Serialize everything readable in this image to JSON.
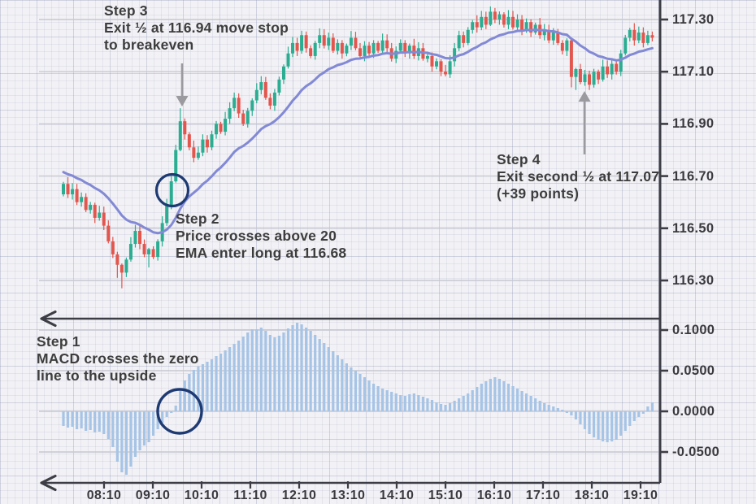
{
  "chart_data": {
    "type": "candlestick_with_ema_and_macd_histogram",
    "description": "Intraday price with 20 EMA (top panel) and MACD histogram (bottom panel)",
    "bars": 132,
    "open_first": 116.63,
    "closes": [
      116.67,
      116.63,
      116.65,
      116.6,
      116.62,
      116.57,
      116.59,
      116.54,
      116.56,
      116.51,
      116.45,
      116.4,
      116.36,
      116.33,
      116.38,
      116.44,
      116.49,
      116.44,
      116.4,
      116.42,
      116.39,
      116.45,
      116.52,
      116.59,
      116.68,
      116.8,
      116.91,
      116.86,
      116.81,
      116.77,
      116.79,
      116.84,
      116.81,
      116.86,
      116.9,
      116.87,
      116.92,
      116.96,
      117.0,
      116.94,
      116.9,
      116.95,
      116.99,
      117.03,
      117.06,
      117.0,
      116.97,
      117.02,
      117.07,
      117.12,
      117.17,
      117.21,
      117.18,
      117.24,
      117.19,
      117.16,
      117.21,
      117.24,
      117.2,
      117.23,
      117.18,
      117.21,
      117.17,
      117.2,
      117.23,
      117.19,
      117.16,
      117.2,
      117.17,
      117.21,
      117.18,
      117.22,
      117.19,
      117.15,
      117.18,
      117.21,
      117.17,
      117.2,
      117.16,
      117.19,
      117.15,
      117.16,
      117.12,
      117.14,
      117.1,
      117.09,
      117.14,
      117.19,
      117.24,
      117.21,
      117.26,
      117.29,
      117.27,
      117.31,
      117.28,
      117.33,
      117.3,
      117.32,
      117.28,
      117.31,
      117.27,
      117.3,
      117.26,
      117.29,
      117.25,
      117.28,
      117.24,
      117.26,
      117.22,
      117.25,
      117.21,
      117.18,
      117.22,
      117.08,
      117.11,
      117.06,
      117.09,
      117.05,
      117.1,
      117.07,
      117.12,
      117.09,
      117.13,
      117.1,
      117.17,
      117.23,
      117.26,
      117.22,
      117.25,
      117.21,
      117.24,
      117.23
    ],
    "ema_period": 20,
    "ema_seed": 116.72,
    "wick_default": 0.008,
    "wick_overrides": {
      "12": [
        0.01,
        0.05
      ],
      "13": [
        0.005,
        0.06
      ],
      "19": [
        0.005,
        0.05
      ],
      "25": [
        0.02,
        0.005
      ],
      "26": [
        0.05,
        0.005
      ],
      "95": [
        0.02,
        0.005
      ],
      "113": [
        0.005,
        0.04
      ],
      "114": [
        0.005,
        0.05
      ]
    },
    "macd_values": [
      -0.018,
      -0.02,
      -0.019,
      -0.022,
      -0.021,
      -0.024,
      -0.023,
      -0.026,
      -0.025,
      -0.028,
      -0.034,
      -0.044,
      -0.062,
      -0.075,
      -0.078,
      -0.068,
      -0.056,
      -0.048,
      -0.042,
      -0.038,
      -0.03,
      -0.022,
      -0.014,
      -0.007,
      -0.002,
      0.007,
      0.025,
      0.038,
      0.046,
      0.051,
      0.055,
      0.058,
      0.061,
      0.064,
      0.068,
      0.071,
      0.075,
      0.079,
      0.083,
      0.087,
      0.092,
      0.097,
      0.101,
      0.101,
      0.103,
      0.099,
      0.094,
      0.091,
      0.093,
      0.097,
      0.102,
      0.106,
      0.109,
      0.107,
      0.103,
      0.099,
      0.094,
      0.089,
      0.084,
      0.079,
      0.074,
      0.069,
      0.064,
      0.059,
      0.054,
      0.05,
      0.046,
      0.042,
      0.038,
      0.034,
      0.031,
      0.028,
      0.026,
      0.024,
      0.022,
      0.02,
      0.019,
      0.021,
      0.022,
      0.02,
      0.018,
      0.016,
      0.014,
      0.011,
      0.009,
      0.008,
      0.01,
      0.013,
      0.016,
      0.019,
      0.022,
      0.026,
      0.03,
      0.034,
      0.037,
      0.04,
      0.042,
      0.04,
      0.037,
      0.034,
      0.031,
      0.028,
      0.025,
      0.022,
      0.019,
      0.016,
      0.013,
      0.01,
      0.008,
      0.006,
      0.004,
      0.002,
      -0.002,
      -0.005,
      -0.01,
      -0.016,
      -0.022,
      -0.028,
      -0.032,
      -0.035,
      -0.037,
      -0.038,
      -0.037,
      -0.035,
      -0.03,
      -0.024,
      -0.018,
      -0.012,
      -0.007,
      -0.003,
      0.006,
      0.011
    ],
    "price_axis": {
      "tick_values": [
        117.3,
        117.1,
        116.9,
        116.7,
        116.5,
        116.3
      ],
      "tick_labels": [
        "117.30",
        "117.10",
        "116.90",
        "116.70",
        "116.50",
        "116.30"
      ],
      "range": [
        116.2,
        117.37
      ]
    },
    "macd_axis": {
      "tick_values": [
        0.1,
        0.05,
        0.0,
        -0.05
      ],
      "tick_labels": [
        "0.1000",
        "0.0500",
        "0.0000",
        "-0.0500"
      ],
      "range": [
        -0.09,
        0.115
      ]
    },
    "time_axis": {
      "tick_labels": [
        "08:10",
        "09:10",
        "10:10",
        "11:10",
        "12:10",
        "13:10",
        "14:10",
        "15:10",
        "16:10",
        "17:10",
        "18:10",
        "19:10"
      ]
    },
    "legend": "none",
    "grid": "graph-paper background with horizontal level gridlines"
  },
  "annotations": {
    "step1": {
      "title": "Step 1",
      "line1": "MACD crosses the zero",
      "line2": "line to the upside"
    },
    "step2": {
      "title": "Step 2",
      "line1": "Price crosses above 20",
      "line2": "EMA enter long at 116.68"
    },
    "step3": {
      "title": "Step 3",
      "line1": "Exit ½ at 116.94 move stop",
      "line2": "to breakeven"
    },
    "step4": {
      "title": "Step 4",
      "line1": "Exit second ½ at 117.07",
      "line2": "(+39 points)"
    }
  },
  "colors": {
    "bull_candle": "#2bad92",
    "bear_candle": "#e2564e",
    "ema_line": "#8289d5",
    "macd_bar": "#a6c4e6",
    "highlight_circle": "#1e3a72",
    "axis": "#3d3d45",
    "gridline": "#c6c8d2",
    "annotation_text": "#3d3d3d",
    "annotation_arrow": "#9b9b9f",
    "background": "#f2f1f5"
  }
}
